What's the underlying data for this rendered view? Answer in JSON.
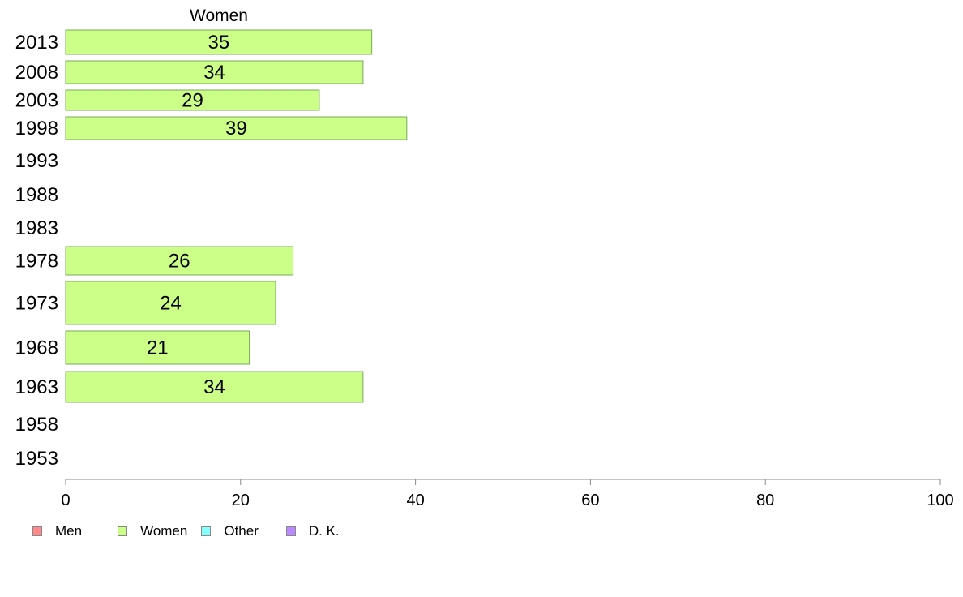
{
  "chart_data": {
    "type": "bar",
    "orientation": "horizontal",
    "title": "Women",
    "categories": [
      "2013",
      "2008",
      "2003",
      "1998",
      "1993",
      "1988",
      "1983",
      "1978",
      "1973",
      "1968",
      "1963",
      "1958",
      "1953"
    ],
    "series": [
      {
        "name": "Women",
        "color": "#ccff88",
        "values": [
          35,
          34,
          29,
          39,
          null,
          null,
          null,
          26,
          24,
          21,
          34,
          null,
          null
        ]
      }
    ],
    "data_labels": [
      "35",
      "34",
      "29",
      "39",
      "",
      "",
      "",
      "26",
      "24",
      "21",
      "34",
      "",
      ""
    ],
    "xlim": [
      0,
      100
    ],
    "xticks": [
      0,
      20,
      40,
      60,
      80,
      100
    ],
    "grid": false,
    "legend_position": "bottom-left"
  },
  "legend": [
    {
      "label": "Men",
      "color": "#ff8888"
    },
    {
      "label": "Women",
      "color": "#ccff88"
    },
    {
      "label": "Other",
      "color": "#88ffff"
    },
    {
      "label": "D. K.",
      "color": "#bb88ff"
    }
  ],
  "colors": {
    "bar_stroke": "#77aa55",
    "axis": "#888888"
  }
}
